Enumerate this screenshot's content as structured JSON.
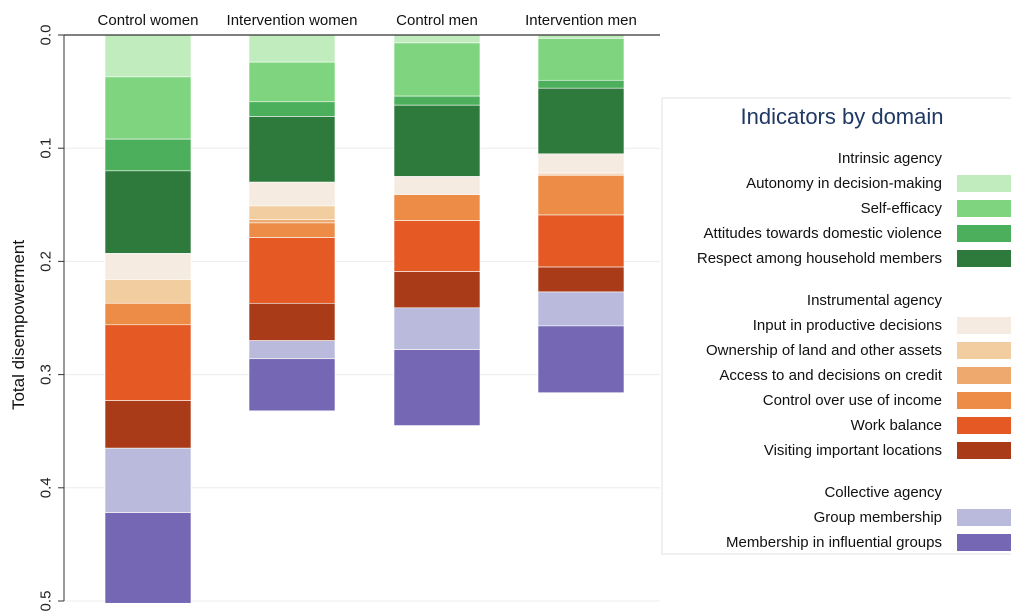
{
  "chart_data": {
    "type": "bar",
    "stacked": true,
    "orientation": "vertical",
    "y_axis_reversed": true,
    "ylabel": "Total disempowerment",
    "ylim": [
      0,
      0.5
    ],
    "yticks": [
      0,
      0.1,
      0.2,
      0.3,
      0.4,
      0.5
    ],
    "ytick_labels": [
      "0.0",
      "0.1",
      "0.2",
      "0.3",
      "0.4",
      "0.5"
    ],
    "grid": true,
    "categories": [
      "Control women",
      "Intervention women",
      "Control men",
      "Intervention men"
    ],
    "series": [
      {
        "name": "Autonomy in decision-making",
        "color": "#c0ecbe",
        "values": [
          0.037,
          0.024,
          0.007,
          0.003
        ]
      },
      {
        "name": "Self-efficacy",
        "color": "#7fd47f",
        "values": [
          0.055,
          0.035,
          0.047,
          0.037
        ]
      },
      {
        "name": "Attitudes towards domestic violence",
        "color": "#4caf5c",
        "values": [
          0.028,
          0.013,
          0.008,
          0.007
        ]
      },
      {
        "name": "Respect among household members",
        "color": "#2e7a3c",
        "values": [
          0.073,
          0.058,
          0.063,
          0.058
        ]
      },
      {
        "name": "Input in productive decisions",
        "color": "#f5ebe0",
        "values": [
          0.023,
          0.021,
          0.016,
          0.017
        ]
      },
      {
        "name": "Ownership of land and other assets",
        "color": "#f2cda0",
        "values": [
          0.021,
          0.012,
          0.0,
          0.001
        ]
      },
      {
        "name": "Access to and decisions on credit",
        "color": "#eeaa6e",
        "values": [
          0.0,
          0.003,
          0.0,
          0.001
        ]
      },
      {
        "name": "Control over use of income",
        "color": "#ec8c46",
        "values": [
          0.019,
          0.013,
          0.023,
          0.035
        ]
      },
      {
        "name": "Work balance",
        "color": "#e55a24",
        "values": [
          0.067,
          0.058,
          0.045,
          0.046
        ]
      },
      {
        "name": "Visiting important locations",
        "color": "#a93b18",
        "values": [
          0.042,
          0.033,
          0.032,
          0.022
        ]
      },
      {
        "name": "Group membership",
        "color": "#babadc",
        "values": [
          0.057,
          0.016,
          0.037,
          0.03
        ]
      },
      {
        "name": "Membership in influential groups",
        "color": "#7667b4",
        "values": [
          0.08,
          0.046,
          0.067,
          0.059
        ]
      }
    ],
    "legend": {
      "title": "Indicators by domain",
      "placement": "right",
      "groups": [
        {
          "title": "Intrinsic agency",
          "items": [
            0,
            1,
            2,
            3
          ]
        },
        {
          "title": "Instrumental agency",
          "items": [
            4,
            5,
            6,
            7,
            8,
            9
          ]
        },
        {
          "title": "Collective agency",
          "items": [
            10,
            11
          ]
        }
      ]
    }
  }
}
